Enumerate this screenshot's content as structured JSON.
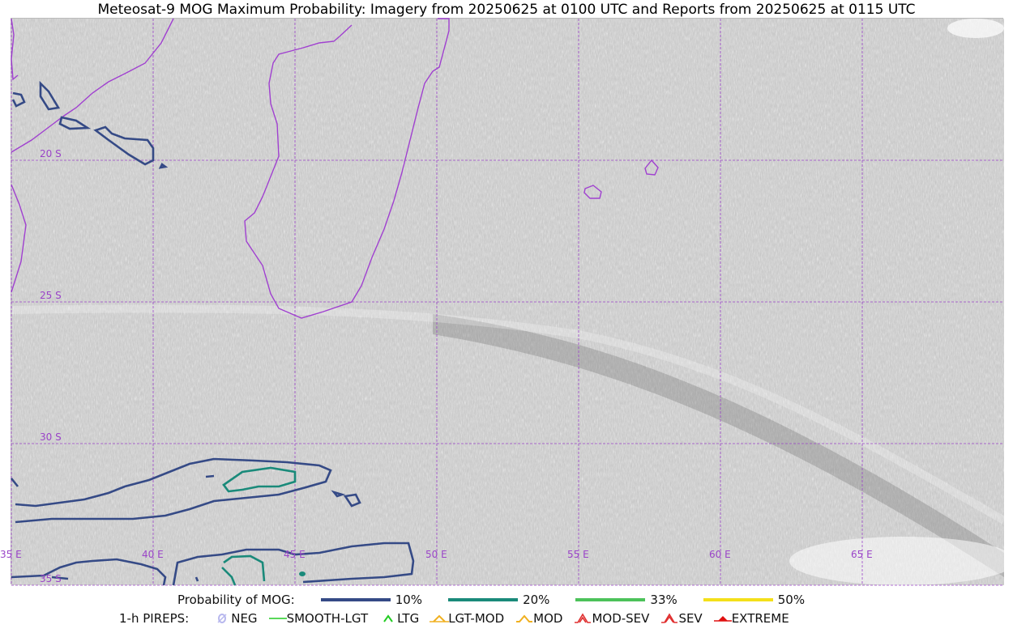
{
  "title": "Meteosat-9 MOG Maximum Probability: Imagery from 20250625 at 0100 UTC and Reports from 20250625 at 0115 UTC",
  "map": {
    "lat_labels": [
      "20 S",
      "25 S",
      "30 S",
      "35 S"
    ],
    "lon_labels": [
      "35 E",
      "40 E",
      "45 E",
      "50 E",
      "55 E",
      "60 E",
      "65 E"
    ],
    "colors": {
      "coastline": "#a040d0",
      "grid": "#9a44c8",
      "label": "#9a44c8",
      "contour_10": "#354a86",
      "contour_20": "#1a8a7a"
    }
  },
  "legend": {
    "probability": {
      "title": "Probability of MOG:",
      "items": [
        {
          "label": "10%",
          "color": "#354a86"
        },
        {
          "label": "20%",
          "color": "#1a8a7a"
        },
        {
          "label": "33%",
          "color": "#4cc25a"
        },
        {
          "label": "50%",
          "color": "#f4e01a"
        }
      ]
    },
    "pireps": {
      "title": "1-h PIREPS:",
      "items": [
        {
          "label": "NEG",
          "color": "#b8b8ee",
          "icon": "neg-icon"
        },
        {
          "label": "SMOOTH-LGT",
          "color": "#22cc22",
          "icon": "smooth-lgt-icon"
        },
        {
          "label": "LTG",
          "color": "#22cc22",
          "icon": "ltg-icon"
        },
        {
          "label": "LGT-MOD",
          "color": "#f0b020",
          "icon": "lgt-mod-icon"
        },
        {
          "label": "MOD",
          "color": "#f0b020",
          "icon": "mod-icon"
        },
        {
          "label": "MOD-SEV",
          "color": "#e03030",
          "icon": "mod-sev-icon"
        },
        {
          "label": "SEV",
          "color": "#e03030",
          "icon": "sev-icon"
        },
        {
          "label": "EXTREME",
          "color": "#e01010",
          "icon": "extreme-icon"
        }
      ]
    }
  }
}
